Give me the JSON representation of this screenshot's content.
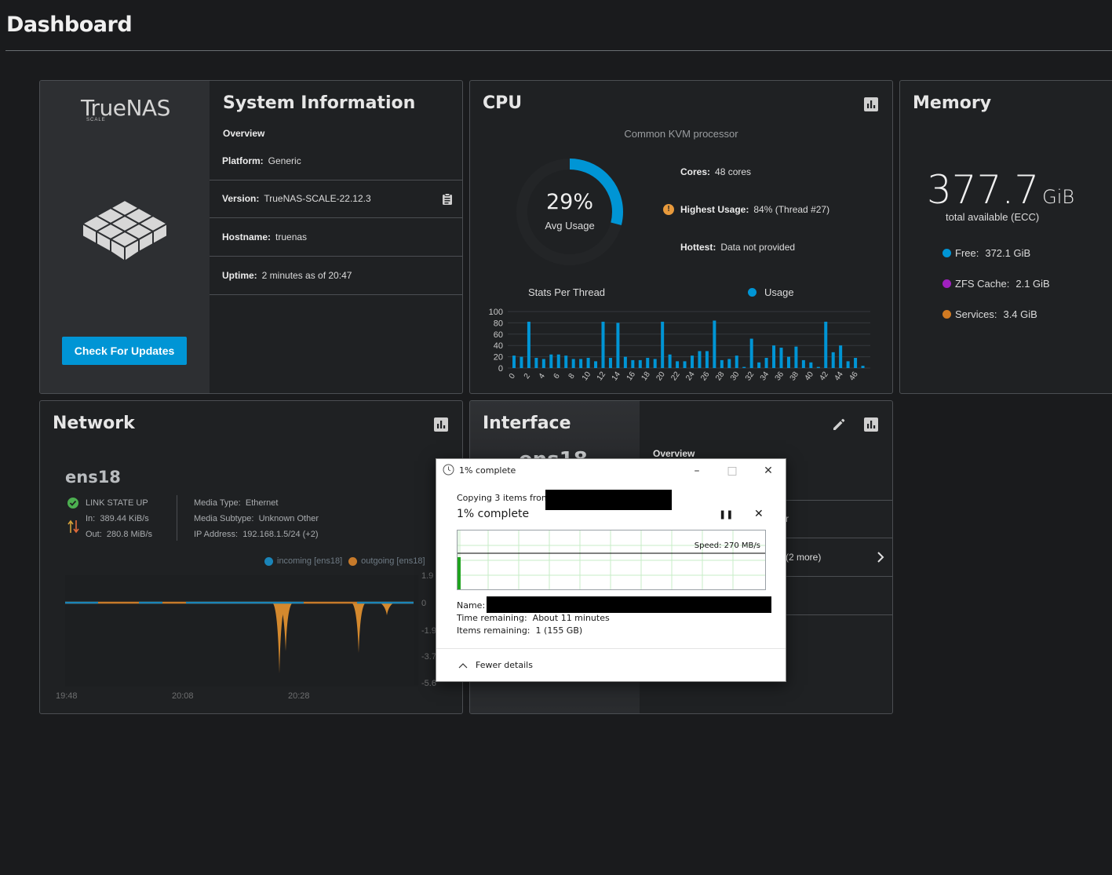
{
  "page": {
    "title": "Dashboard"
  },
  "system": {
    "title": "System Information",
    "logo_text": "TrueNAS",
    "logo_sub": "SCALE",
    "overview_label": "Overview",
    "platform_label": "Platform:",
    "platform": "Generic",
    "version_label": "Version:",
    "version": "TrueNAS-SCALE-22.12.3",
    "hostname_label": "Hostname:",
    "hostname": "truenas",
    "uptime_label": "Uptime:",
    "uptime": "2 minutes as of 20:47",
    "update_button": "Check For Updates"
  },
  "cpu": {
    "title": "CPU",
    "processor": "Common KVM processor",
    "avg_value": "29%",
    "avg_percent": 29,
    "avg_label": "Avg Usage",
    "cores_label": "Cores:",
    "cores": "48 cores",
    "highest_label": "Highest Usage:",
    "highest": "84%  (Thread #27)",
    "hottest_label": "Hottest:",
    "hottest": "Data not provided",
    "chart_title": "Stats Per Thread",
    "legend_usage": "Usage"
  },
  "memory": {
    "title": "Memory",
    "total": "377.7",
    "unit": "GiB",
    "total_label": "total available (ECC)",
    "free_label": "Free:",
    "free": "372.1 GiB",
    "zfs_label": "ZFS Cache:",
    "zfs": "2.1 GiB",
    "services_label": "Services:",
    "services": "3.4 GiB"
  },
  "network": {
    "title": "Network",
    "interface": "ens18",
    "link_state": "LINK STATE UP",
    "in_label": "In:",
    "in": "389.44 KiB/s",
    "out_label": "Out:",
    "out": "280.8 MiB/s",
    "media_type_label": "Media Type:",
    "media_type": "Ethernet",
    "media_subtype_label": "Media Subtype:",
    "media_subtype": "Unknown Other",
    "ip_label": "IP Address:",
    "ip": "192.168.1.5/24 (+2)",
    "legend_in": "incoming [ens18]",
    "legend_out": "outgoing [ens18]"
  },
  "interface": {
    "title": "Interface",
    "name_partial": "ens18",
    "overview_label": "Overview",
    "row_partial_1": "r",
    "row_partial_2": "(2 more)"
  },
  "copy_dialog": {
    "title": "1% complete",
    "copying_text": "Copying 3 items from",
    "progress_title": "1% complete",
    "progress_percent": 1,
    "speed": "Speed: 270 MB/s",
    "name_label": "Name:",
    "time_label": "Time remaining:",
    "time_value": "About 11 minutes",
    "items_label": "Items remaining:",
    "items_value": "1 (155 GB)",
    "fewer_details": "Fewer details"
  },
  "colors": {
    "accent": "#0095d5",
    "outgoing": "#e08a2e",
    "zfs": "#a020c0",
    "warning": "#e89a3c",
    "ok": "#4caf50"
  },
  "chart_data": [
    {
      "type": "bar",
      "title": "Stats Per Thread",
      "legend": [
        "Usage"
      ],
      "categories": [
        "0",
        "1",
        "2",
        "3",
        "4",
        "5",
        "6",
        "7",
        "8",
        "9",
        "10",
        "11",
        "12",
        "13",
        "14",
        "15",
        "16",
        "17",
        "18",
        "19",
        "20",
        "21",
        "22",
        "23",
        "24",
        "25",
        "26",
        "27",
        "28",
        "29",
        "30",
        "31",
        "32",
        "33",
        "34",
        "35",
        "36",
        "37",
        "38",
        "39",
        "40",
        "41",
        "42",
        "43",
        "44",
        "45",
        "46",
        "47"
      ],
      "values": [
        22,
        20,
        82,
        18,
        16,
        24,
        24,
        22,
        16,
        16,
        18,
        12,
        82,
        18,
        80,
        20,
        14,
        14,
        18,
        16,
        82,
        24,
        12,
        12,
        22,
        30,
        30,
        84,
        14,
        16,
        22,
        2,
        52,
        10,
        18,
        40,
        36,
        20,
        38,
        14,
        10,
        2,
        82,
        28,
        40,
        12,
        18,
        4
      ],
      "ylim": [
        0,
        100
      ],
      "yticks": [
        0,
        20,
        40,
        60,
        80,
        100
      ],
      "xticks": [
        "0",
        "2",
        "4",
        "6",
        "8",
        "10",
        "12",
        "14",
        "16",
        "18",
        "20",
        "22",
        "24",
        "26",
        "28",
        "30",
        "32",
        "34",
        "36",
        "38",
        "40",
        "42",
        "44",
        "46"
      ]
    },
    {
      "type": "area",
      "title": "Network ens18",
      "series": [
        {
          "name": "incoming [ens18]",
          "x": [
            "19:48",
            "20:08",
            "20:28"
          ],
          "values": [
            0,
            0,
            0
          ]
        },
        {
          "name": "outgoing [ens18]",
          "x": [
            "19:48",
            "20:08",
            "20:28"
          ],
          "values": [
            0,
            0,
            -4.6
          ]
        }
      ],
      "yticks_visible": [
        "1.9",
        "0",
        "-1.9",
        "-3.7",
        "-5.6"
      ],
      "xticks": [
        "19:48",
        "20:08",
        "20:28"
      ]
    }
  ]
}
